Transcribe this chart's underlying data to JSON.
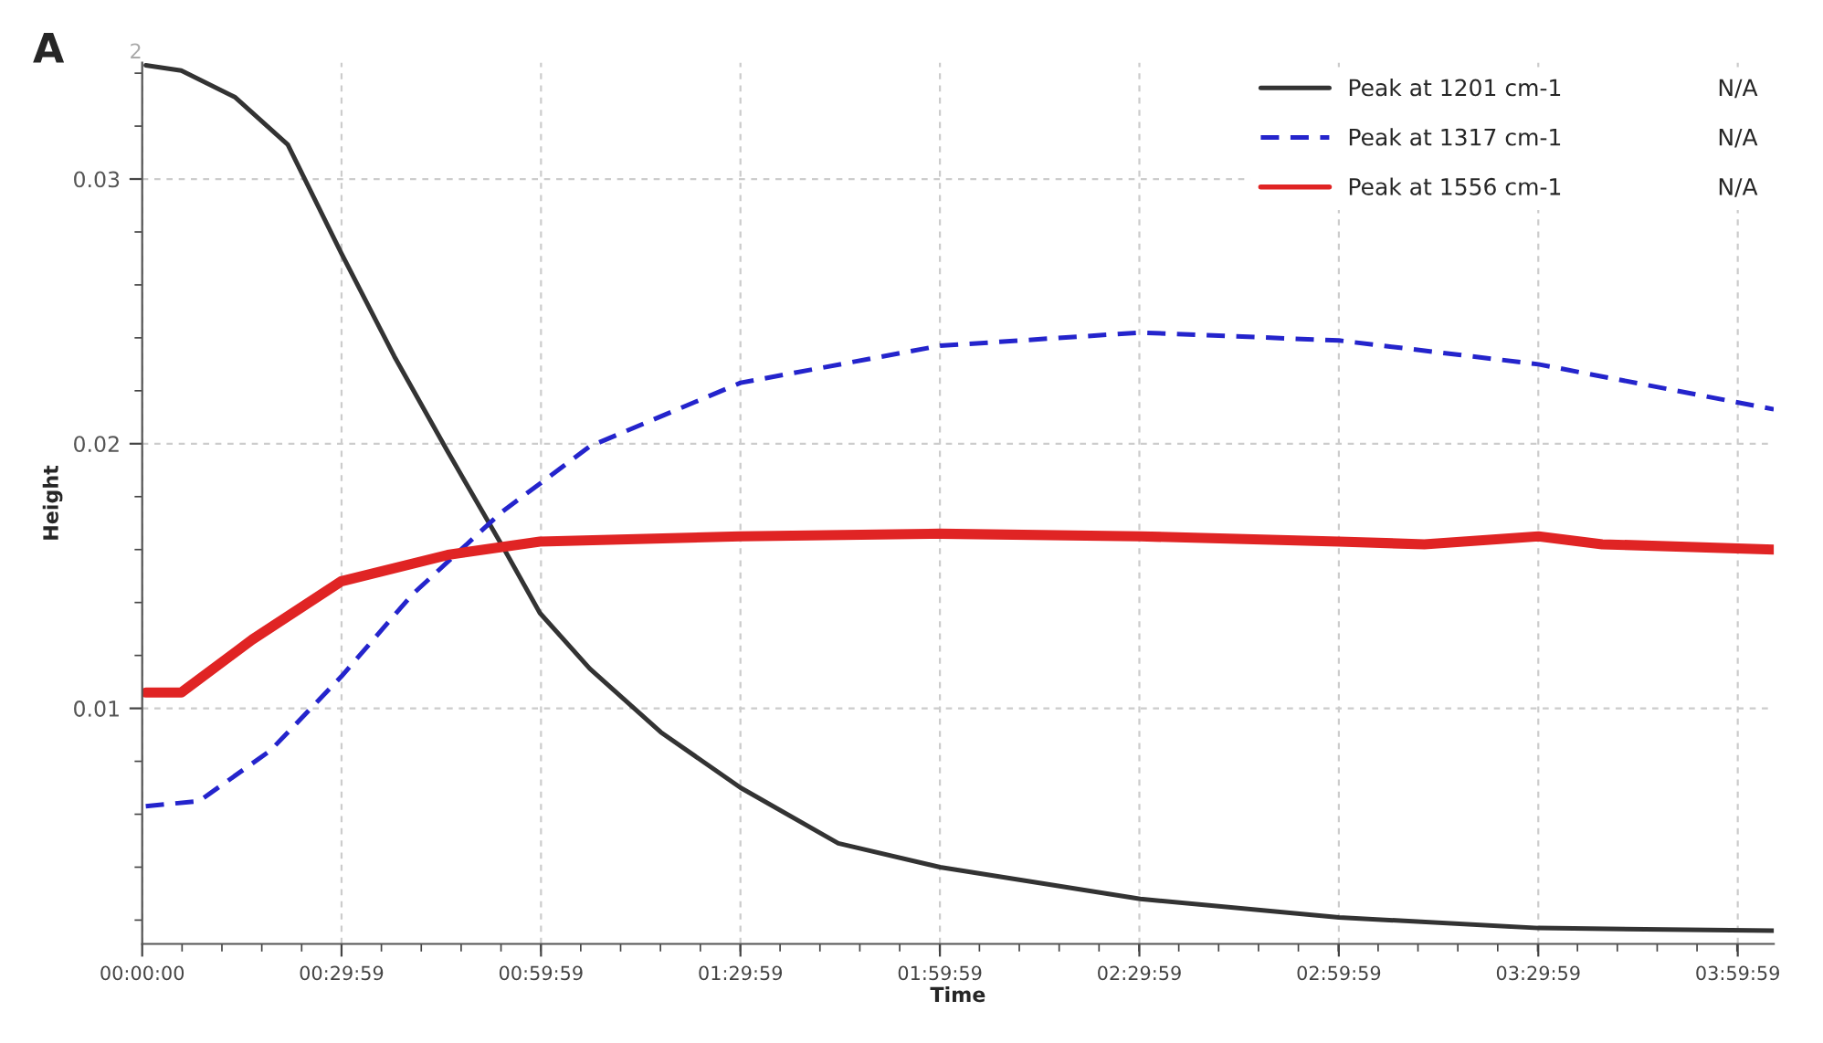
{
  "chart_data": {
    "type": "line",
    "xlabel": "Time",
    "ylabel": "Height",
    "annotations": [
      "A",
      "2",
      "N/A",
      "N/A",
      "N/A"
    ],
    "xlim": [
      0,
      4.09
    ],
    "ylim": [
      0.0011,
      0.0344
    ],
    "xticks": [
      {
        "value": 0,
        "label": "00:00:00"
      },
      {
        "value": 0.4997,
        "label": "00:29:59"
      },
      {
        "value": 0.9997,
        "label": "00:59:59"
      },
      {
        "value": 1.4997,
        "label": "01:29:59"
      },
      {
        "value": 1.9997,
        "label": "01:59:59"
      },
      {
        "value": 2.4997,
        "label": "02:29:59"
      },
      {
        "value": 2.9997,
        "label": "02:59:59"
      },
      {
        "value": 3.4997,
        "label": "03:29:59"
      },
      {
        "value": 3.9997,
        "label": "03:59:59"
      }
    ],
    "yticks": [
      0.01,
      0.02,
      0.03
    ],
    "grid": true,
    "legend": "top right",
    "series": [
      {
        "name": "Peak at 1201 cm-1",
        "color": "#333333",
        "line_style": "solid",
        "x": [
          0.009,
          0.098,
          0.232,
          0.365,
          0.499,
          0.632,
          0.766,
          0.908,
          0.997,
          1.122,
          1.3,
          1.5,
          1.745,
          2.0,
          2.502,
          3.0,
          3.5,
          4.09
        ],
        "values": [
          0.0343,
          0.0341,
          0.0331,
          0.0313,
          0.0272,
          0.0233,
          0.0197,
          0.016,
          0.0136,
          0.0115,
          0.0091,
          0.007,
          0.0049,
          0.004,
          0.0028,
          0.0021,
          0.0017,
          0.0016
        ]
      },
      {
        "name": "Peak at 1317 cm-1",
        "color": "#2424cc",
        "line_style": "dashed",
        "x": [
          0.009,
          0.143,
          0.321,
          0.499,
          0.677,
          0.9,
          1.122,
          1.5,
          2.0,
          2.502,
          3.0,
          3.5,
          4.09
        ],
        "values": [
          0.0063,
          0.0065,
          0.0084,
          0.0112,
          0.0143,
          0.0174,
          0.0199,
          0.0223,
          0.0237,
          0.0242,
          0.0239,
          0.023,
          0.0213
        ]
      },
      {
        "name": "Peak at 1556 cm-1",
        "color": "#e02424",
        "line_style": "solid",
        "x": [
          0.009,
          0.098,
          0.276,
          0.499,
          0.766,
          0.997,
          1.5,
          2.0,
          2.502,
          3.0,
          3.214,
          3.5,
          3.66,
          4.09
        ],
        "values": [
          0.0106,
          0.0106,
          0.0126,
          0.0148,
          0.0158,
          0.0163,
          0.0165,
          0.0166,
          0.0165,
          0.0163,
          0.0162,
          0.0165,
          0.0162,
          0.016
        ]
      }
    ]
  }
}
